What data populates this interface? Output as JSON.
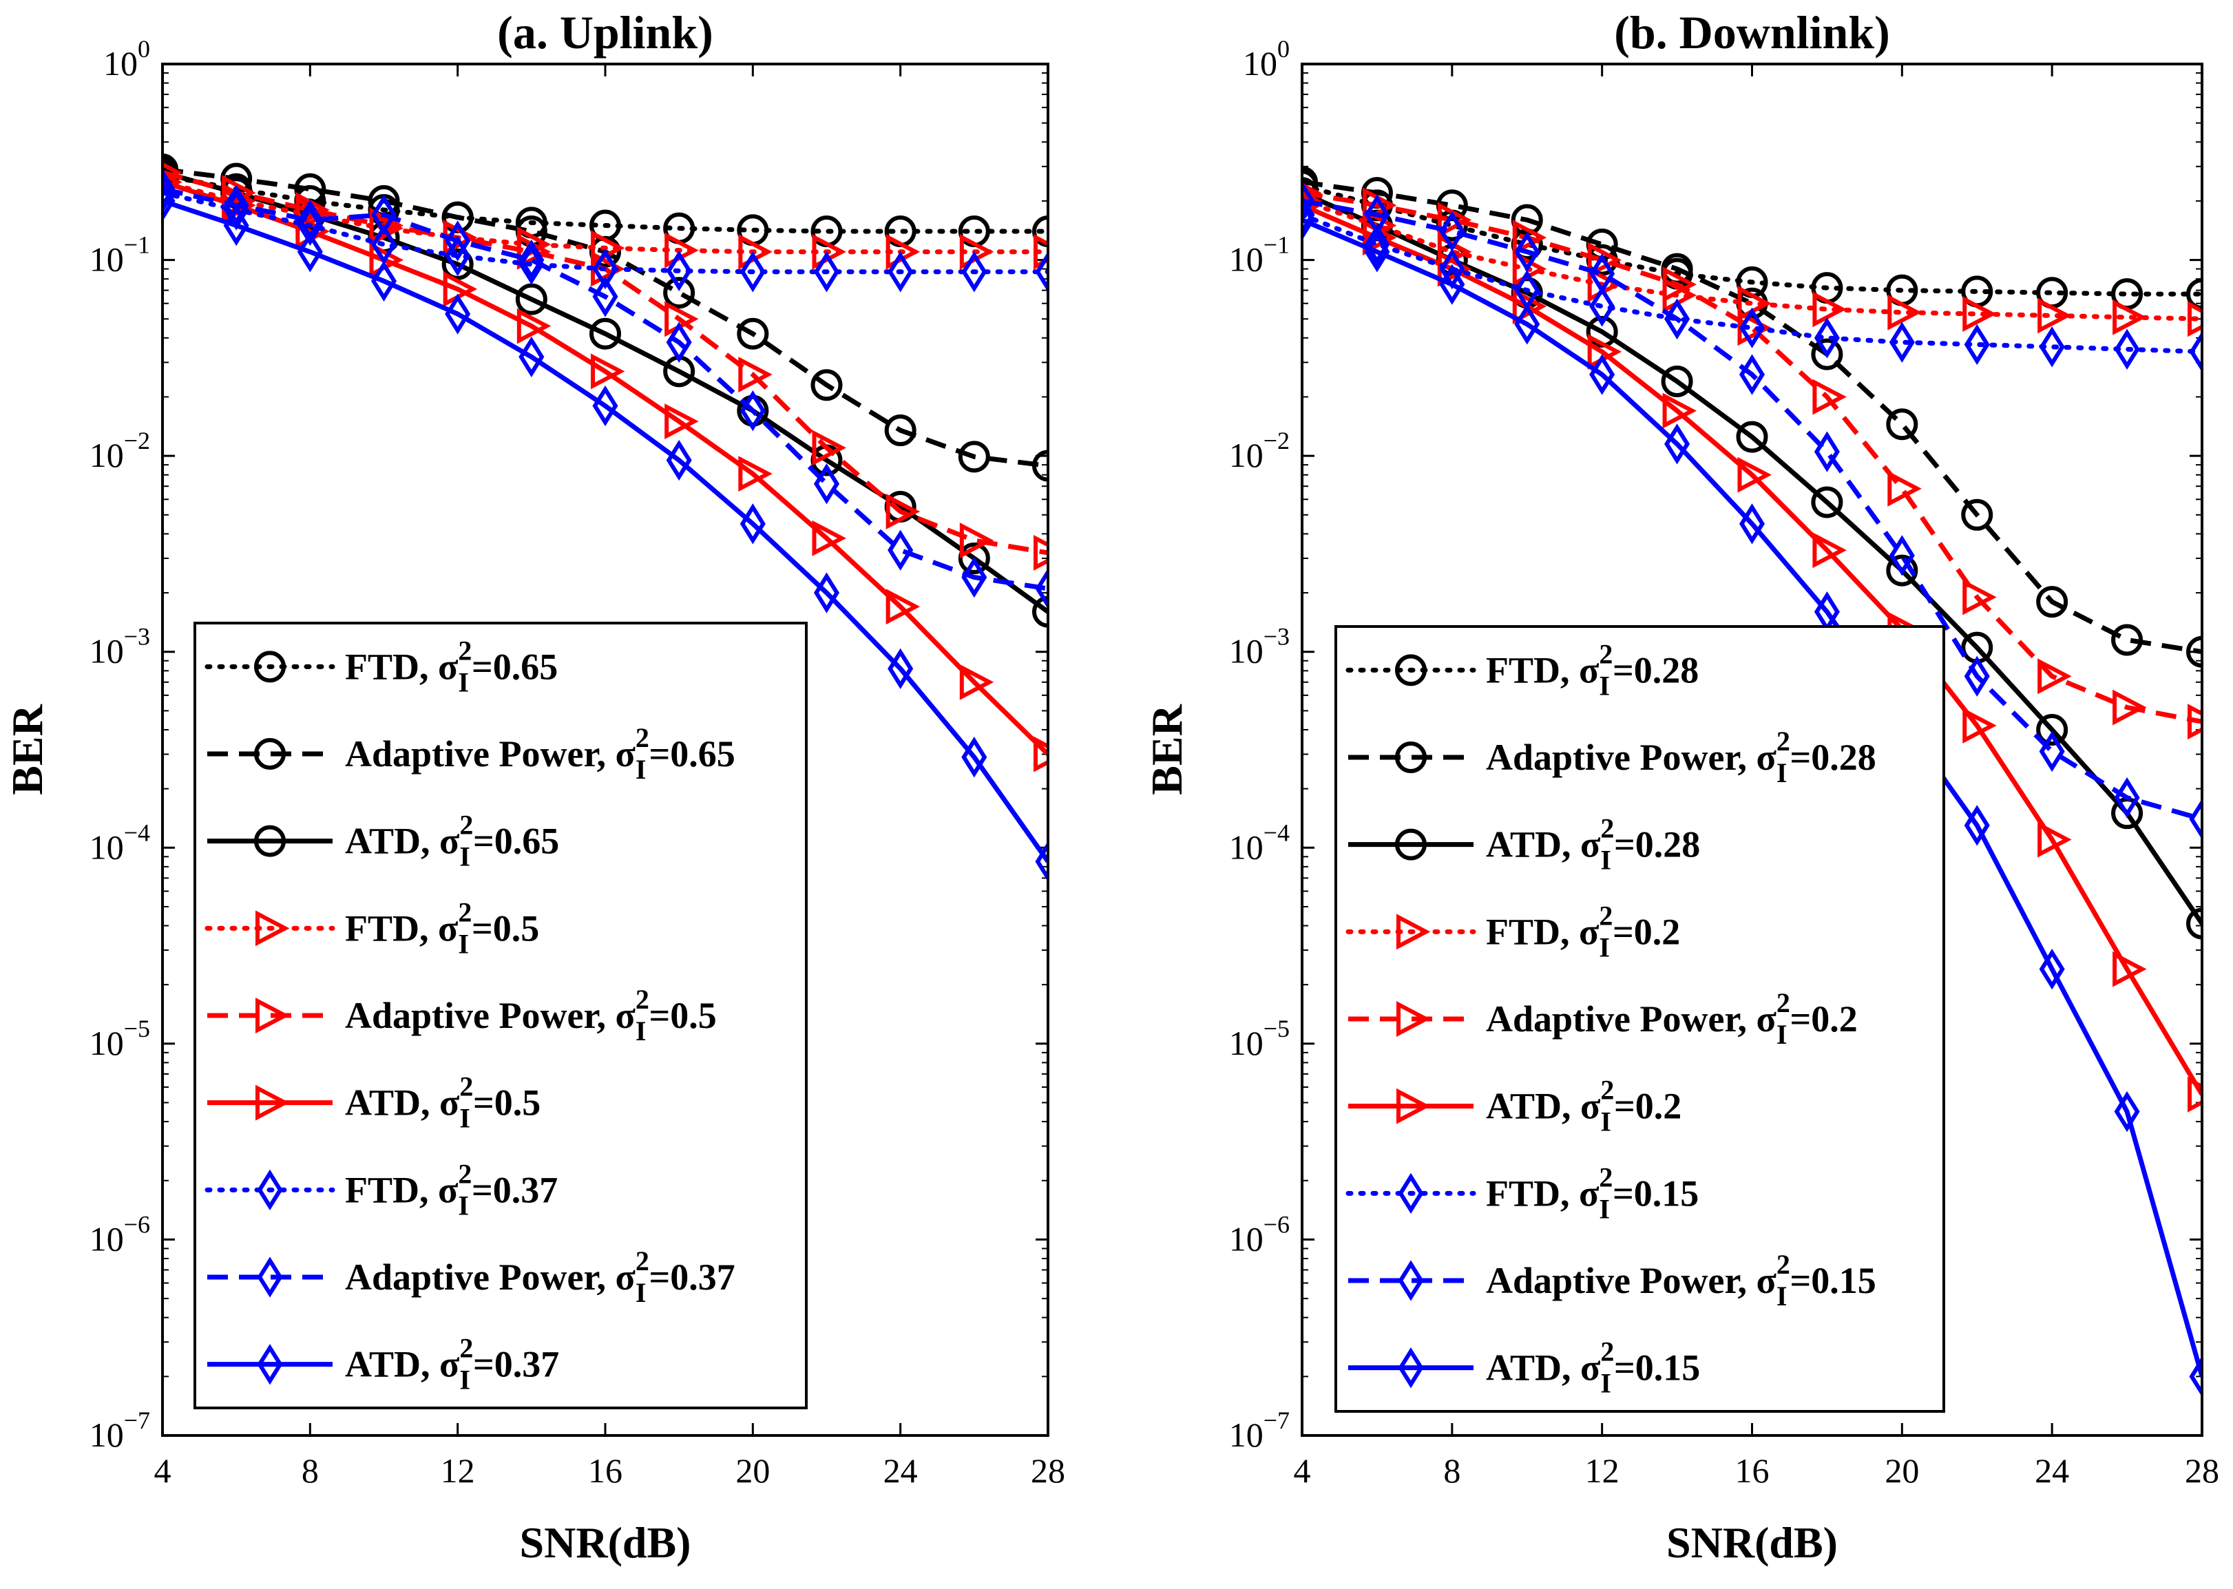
{
  "figure": {
    "styles": {
      "ftd_dash": "dotted",
      "adaptive_dash": "dashed",
      "atd_dash": "solid"
    },
    "legend_prefix_ftd": "FTD",
    "legend_prefix_adaptive": "Adaptive Power",
    "legend_prefix_atd": "ATD",
    "legend_symbol": "σ",
    "legend_subscript": "I",
    "legend_superscript": "2"
  },
  "chart_data": [
    {
      "type": "line",
      "title": "(a. Uplink)",
      "xlabel": "SNR(dB)",
      "ylabel": "BER",
      "yscale": "log",
      "xlim": [
        4,
        28
      ],
      "ylim": [
        1e-07,
        1
      ],
      "xticks": [
        "4",
        "8",
        "12",
        "16",
        "20",
        "24",
        "28"
      ],
      "yticks": [
        "10^0",
        "10^-1",
        "10^-2",
        "10^-3",
        "10^-4",
        "10^-5",
        "10^-6",
        "10^-7"
      ],
      "grid": false,
      "legend_position": "bottom-left",
      "x": [
        4,
        6,
        8,
        10,
        12,
        14,
        16,
        18,
        20,
        22,
        24,
        26,
        28
      ],
      "series": [
        {
          "name": "FTD, σI2=0.65",
          "method": "FTD",
          "sigma": "0.65",
          "color": "#000000",
          "marker": "circle",
          "line": "dotted",
          "values": [
            0.27,
            0.23,
            0.2,
            0.18,
            0.165,
            0.155,
            0.15,
            0.145,
            0.142,
            0.14,
            0.14,
            0.14,
            0.14
          ]
        },
        {
          "name": "Adaptive Power, σI2=0.65",
          "method": "Adaptive Power",
          "sigma": "0.65",
          "color": "#000000",
          "marker": "circle",
          "line": "dashed",
          "values": [
            0.29,
            0.26,
            0.23,
            0.2,
            0.165,
            0.14,
            0.11,
            0.068,
            0.042,
            0.023,
            0.0135,
            0.0099,
            0.0089
          ]
        },
        {
          "name": "ATD, σI2=0.65",
          "method": "ATD",
          "sigma": "0.65",
          "color": "#000000",
          "marker": "circle",
          "line": "solid",
          "values": [
            0.28,
            0.22,
            0.17,
            0.13,
            0.095,
            0.063,
            0.042,
            0.027,
            0.017,
            0.0095,
            0.0055,
            0.003,
            0.0016
          ]
        },
        {
          "name": "FTD, σI2=0.5",
          "method": "FTD",
          "sigma": "0.5",
          "color": "#ff0000",
          "marker": "triangle-right",
          "line": "dotted",
          "values": [
            0.25,
            0.2,
            0.17,
            0.145,
            0.13,
            0.12,
            0.115,
            0.112,
            0.11,
            0.11,
            0.11,
            0.11,
            0.11
          ]
        },
        {
          "name": "Adaptive Power, σI2=0.5",
          "method": "Adaptive Power",
          "sigma": "0.5",
          "color": "#ff0000",
          "marker": "triangle-right",
          "line": "dashed",
          "values": [
            0.28,
            0.22,
            0.18,
            0.15,
            0.13,
            0.11,
            0.09,
            0.05,
            0.026,
            0.011,
            0.0052,
            0.0037,
            0.0032
          ]
        },
        {
          "name": "ATD, σI2=0.5",
          "method": "ATD",
          "sigma": "0.5",
          "color": "#ff0000",
          "marker": "triangle-right",
          "line": "solid",
          "values": [
            0.25,
            0.19,
            0.14,
            0.1,
            0.071,
            0.046,
            0.027,
            0.015,
            0.0081,
            0.0038,
            0.0017,
            0.0007,
            0.0003
          ]
        },
        {
          "name": "FTD, σI2=0.37",
          "method": "FTD",
          "sigma": "0.37",
          "color": "#0000ff",
          "marker": "diamond",
          "line": "dotted",
          "values": [
            0.22,
            0.18,
            0.15,
            0.12,
            0.105,
            0.095,
            0.09,
            0.088,
            0.087,
            0.087,
            0.087,
            0.087,
            0.087
          ]
        },
        {
          "name": "Adaptive Power, σI2=0.37",
          "method": "Adaptive Power",
          "sigma": "0.37",
          "color": "#0000ff",
          "marker": "diamond",
          "line": "dashed",
          "values": [
            0.23,
            0.19,
            0.16,
            0.17,
            0.125,
            0.1,
            0.065,
            0.038,
            0.017,
            0.0072,
            0.0033,
            0.0024,
            0.0021
          ]
        },
        {
          "name": "ATD, σI2=0.37",
          "method": "ATD",
          "sigma": "0.37",
          "color": "#0000ff",
          "marker": "diamond",
          "line": "solid",
          "values": [
            0.2,
            0.15,
            0.11,
            0.078,
            0.053,
            0.032,
            0.018,
            0.0095,
            0.0045,
            0.002,
            0.00082,
            0.00029,
            8.5e-05
          ]
        }
      ]
    },
    {
      "type": "line",
      "title": "(b. Downlink)",
      "xlabel": "SNR(dB)",
      "ylabel": "BER",
      "yscale": "log",
      "xlim": [
        4,
        28
      ],
      "ylim": [
        1e-07,
        1
      ],
      "xticks": [
        "4",
        "8",
        "12",
        "16",
        "20",
        "24",
        "28"
      ],
      "yticks": [
        "10^0",
        "10^-1",
        "10^-2",
        "10^-3",
        "10^-4",
        "10^-5",
        "10^-6",
        "10^-7"
      ],
      "grid": false,
      "legend_position": "bottom-left",
      "x": [
        4,
        6,
        8,
        10,
        12,
        14,
        16,
        18,
        20,
        22,
        24,
        26,
        28
      ],
      "series": [
        {
          "name": "FTD, σI2=0.28",
          "method": "FTD",
          "sigma": "0.28",
          "color": "#000000",
          "marker": "circle",
          "line": "dotted",
          "values": [
            0.24,
            0.19,
            0.15,
            0.12,
            0.1,
            0.085,
            0.077,
            0.072,
            0.07,
            0.069,
            0.068,
            0.067,
            0.067
          ]
        },
        {
          "name": "Adaptive Power, σI2=0.28",
          "method": "Adaptive Power",
          "sigma": "0.28",
          "color": "#000000",
          "marker": "circle",
          "line": "dashed",
          "values": [
            0.25,
            0.22,
            0.19,
            0.16,
            0.12,
            0.09,
            0.06,
            0.033,
            0.0145,
            0.005,
            0.0018,
            0.00115,
            0.001
          ]
        },
        {
          "name": "ATD, σI2=0.28",
          "method": "ATD",
          "sigma": "0.28",
          "color": "#000000",
          "marker": "circle",
          "line": "solid",
          "values": [
            0.22,
            0.15,
            0.1,
            0.068,
            0.043,
            0.024,
            0.0125,
            0.0058,
            0.0026,
            0.00105,
            0.0004,
            0.00015,
            4.1e-05
          ]
        },
        {
          "name": "FTD, σI2=0.2",
          "method": "FTD",
          "sigma": "0.2",
          "color": "#ff0000",
          "marker": "triangle-right",
          "line": "dotted",
          "values": [
            0.2,
            0.15,
            0.11,
            0.09,
            0.075,
            0.066,
            0.06,
            0.056,
            0.054,
            0.053,
            0.052,
            0.051,
            0.05
          ]
        },
        {
          "name": "Adaptive Power, σI2=0.2",
          "method": "Adaptive Power",
          "sigma": "0.2",
          "color": "#ff0000",
          "marker": "triangle-right",
          "line": "dashed",
          "values": [
            0.22,
            0.19,
            0.16,
            0.13,
            0.1,
            0.075,
            0.045,
            0.02,
            0.0068,
            0.0019,
            0.00075,
            0.00052,
            0.00044
          ]
        },
        {
          "name": "ATD, σI2=0.2",
          "method": "ATD",
          "sigma": "0.2",
          "color": "#ff0000",
          "marker": "triangle-right",
          "line": "solid",
          "values": [
            0.19,
            0.13,
            0.09,
            0.058,
            0.034,
            0.017,
            0.008,
            0.0033,
            0.0013,
            0.00042,
            0.00011,
            2.4e-05,
            5.5e-06
          ]
        },
        {
          "name": "FTD, σI2=0.15",
          "method": "FTD",
          "sigma": "0.15",
          "color": "#0000ff",
          "marker": "diamond",
          "line": "dotted",
          "values": [
            0.17,
            0.12,
            0.09,
            0.07,
            0.058,
            0.05,
            0.045,
            0.04,
            0.038,
            0.037,
            0.036,
            0.035,
            0.034
          ]
        },
        {
          "name": "Adaptive Power, σI2=0.15",
          "method": "Adaptive Power",
          "sigma": "0.15",
          "color": "#0000ff",
          "marker": "diamond",
          "line": "dashed",
          "values": [
            0.2,
            0.17,
            0.14,
            0.11,
            0.085,
            0.05,
            0.026,
            0.0105,
            0.0031,
            0.00075,
            0.00031,
            0.00018,
            0.00014
          ]
        },
        {
          "name": "ATD, σI2=0.15",
          "method": "ATD",
          "sigma": "0.15",
          "color": "#0000ff",
          "marker": "diamond",
          "line": "solid",
          "values": [
            0.16,
            0.11,
            0.075,
            0.047,
            0.026,
            0.0115,
            0.0045,
            0.0016,
            0.00045,
            0.00013,
            2.4e-05,
            4.5e-06,
            2e-07
          ]
        }
      ]
    }
  ]
}
